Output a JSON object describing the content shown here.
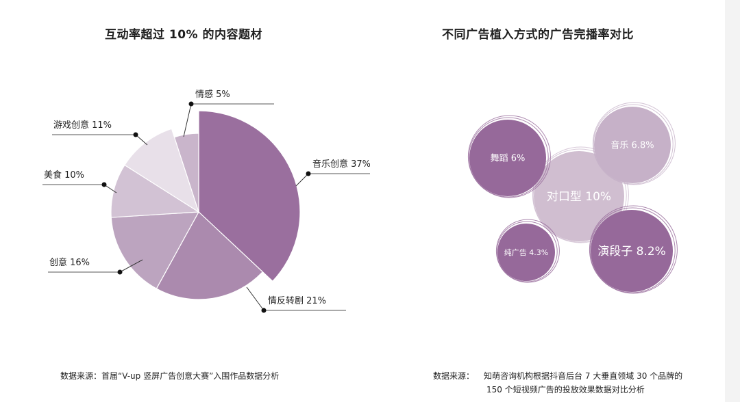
{
  "chart_data": [
    {
      "type": "pie",
      "title": "互动率超过 10% 的内容题材",
      "slices": [
        {
          "label": "音乐创意 37%",
          "value": 37,
          "color": "#9a6f9e"
        },
        {
          "label": "情反转剧 21%",
          "value": 21,
          "color": "#ab8aae"
        },
        {
          "label": "创意 16%",
          "value": 16,
          "color": "#bca4bf"
        },
        {
          "label": "美食 10%",
          "value": 10,
          "color": "#d2c2d4"
        },
        {
          "label": "游戏创意 11%",
          "value": 11,
          "color": "#e8e0e9"
        },
        {
          "label": "情感 5%",
          "value": 5,
          "color": "#c9b5cb"
        }
      ],
      "source": "数据来源：首届“V-up 竖屏广告创意大赛”入围作品数据分析"
    },
    {
      "type": "bubble",
      "title": "不同广告植入方式的广告完播率对比",
      "bubbles": [
        {
          "label": "对口型 10%",
          "value": 10,
          "color": "#cdbace",
          "text_color": "#ffffff"
        },
        {
          "label": "演段子 8.2%",
          "value": 8.2,
          "color": "#96699a",
          "text_color": "#ffffff"
        },
        {
          "label": "音乐 6.8%",
          "value": 6.8,
          "color": "#c6b1c8",
          "text_color": "#ffffff"
        },
        {
          "label": "舞蹈 6%",
          "value": 6,
          "color": "#96699a",
          "text_color": "#ffffff"
        },
        {
          "label": "纯广告 4.3%",
          "value": 4.3,
          "color": "#96699a",
          "text_color": "#ffffff"
        }
      ],
      "source_label": "数据来源：",
      "source_line1": "知萌咨询机构根据抖音后台 7 大垂直领域 30 个品牌的",
      "source_line2": "150 个短视频广告的投放效果数据对比分析"
    }
  ]
}
